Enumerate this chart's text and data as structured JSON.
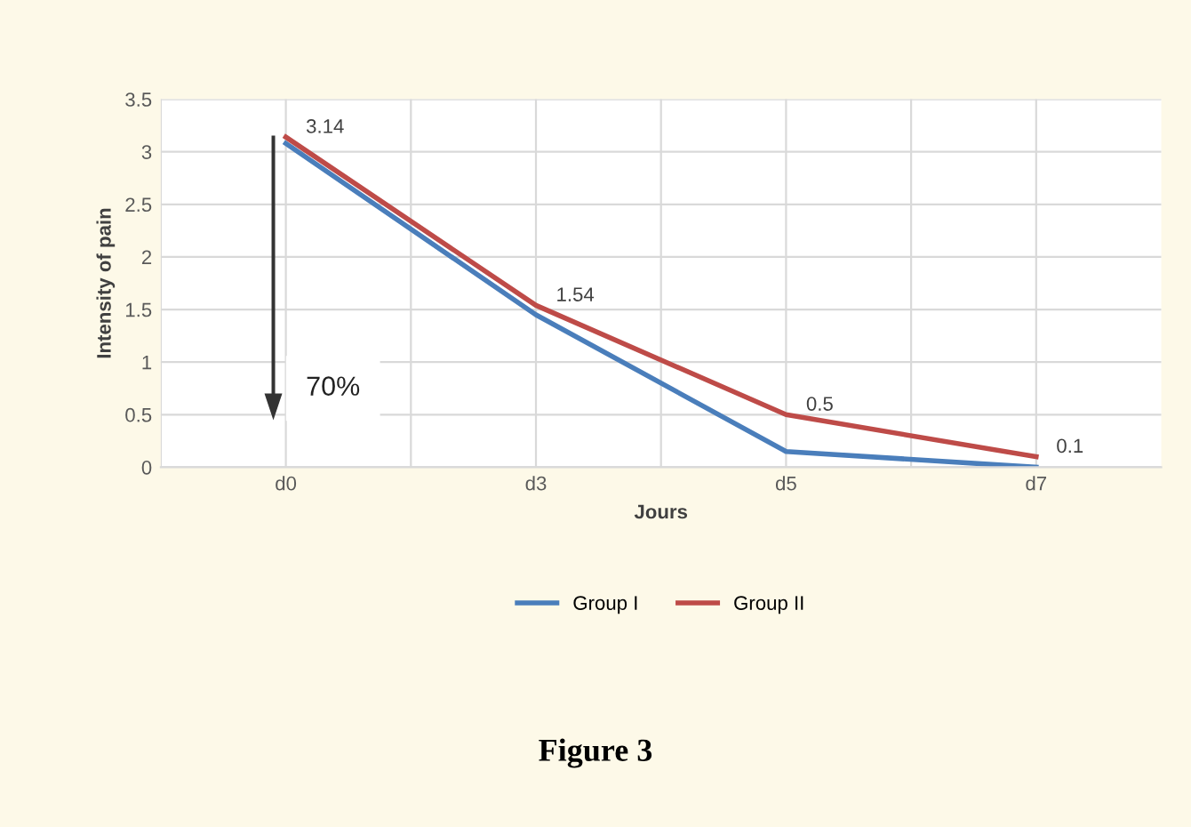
{
  "chart_data": {
    "type": "line",
    "xlabel": "Jours",
    "ylabel": "Intensity of pain",
    "categories": [
      "d0",
      "d3",
      "d5",
      "d7"
    ],
    "series": [
      {
        "name": "Group I",
        "color": "#4a7ebb",
        "values": [
          3.08,
          1.45,
          0.15,
          0.0
        ]
      },
      {
        "name": "Group II",
        "color": "#be4b48",
        "values": [
          3.14,
          1.54,
          0.5,
          0.1
        ],
        "value_labels": [
          "3.14",
          "1.54",
          "0.5",
          "0.1"
        ]
      }
    ],
    "ylim": [
      0,
      3.5
    ],
    "yticks": [
      0,
      0.5,
      1,
      1.5,
      2,
      2.5,
      3,
      3.5
    ],
    "grid": true,
    "legend": "bottom",
    "marker": "none",
    "line_style": "solid",
    "annotations": [
      "70%",
      "Figure 3"
    ]
  }
}
